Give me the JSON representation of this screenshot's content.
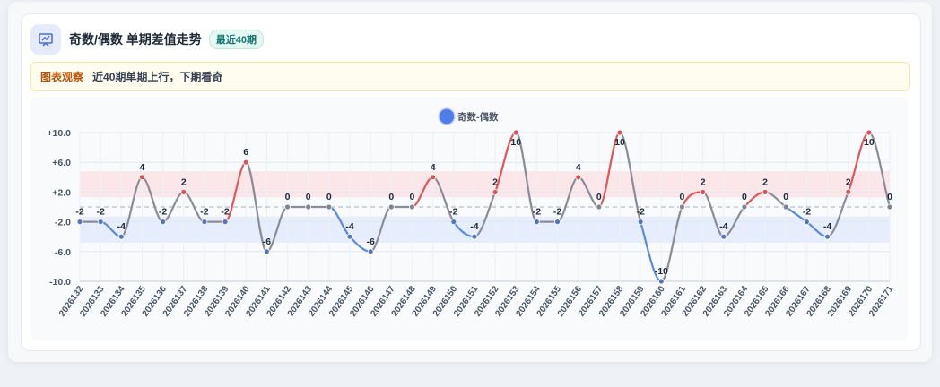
{
  "header": {
    "title": "奇数/偶数 单期差值走势",
    "badge": "最近40期",
    "icon": "chart-presentation-icon"
  },
  "observation": {
    "label": "图表观察",
    "text": "近40期单期上行，下期看奇"
  },
  "colors": {
    "up": "#e15759",
    "down": "#5b8bd6",
    "flat": "#8c8c96",
    "legend": "#4f7fe6",
    "upper_band": "#fbe3e6",
    "lower_band": "#e3eafb"
  },
  "chart_data": {
    "type": "line",
    "legend": "奇数-偶数",
    "legend_position": "top-center",
    "x": [
      "2026132",
      "2026133",
      "2026134",
      "2026135",
      "2026136",
      "2026137",
      "2026138",
      "2026139",
      "2026140",
      "2026141",
      "2026142",
      "2026143",
      "2026144",
      "2026145",
      "2026146",
      "2026147",
      "2026148",
      "2026149",
      "2026150",
      "2026151",
      "2026152",
      "2026153",
      "2026154",
      "2026155",
      "2026156",
      "2026157",
      "2026158",
      "2026159",
      "2026160",
      "2026161",
      "2026162",
      "2026163",
      "2026164",
      "2026165",
      "2026166",
      "2026167",
      "2026168",
      "2026169",
      "2026170",
      "2026171"
    ],
    "values": [
      -2,
      -2,
      -4,
      4,
      -2,
      2,
      -2,
      -2,
      6,
      -6,
      0,
      0,
      0,
      -4,
      -6,
      0,
      0,
      4,
      -2,
      -4,
      2,
      10,
      -2,
      -2,
      4,
      0,
      10,
      -2,
      -10,
      0,
      2,
      -4,
      0,
      2,
      0,
      -2,
      -4,
      2,
      10,
      0
    ],
    "yticks": [
      "+10.0",
      "+6.0",
      "+2.0",
      "-2.0",
      "-6.0",
      "-10.0"
    ],
    "ylim": [
      -10,
      10
    ],
    "bands": [
      [
        1.3,
        4.8
      ],
      [
        -4.8,
        -1.3
      ]
    ],
    "grid": true
  }
}
